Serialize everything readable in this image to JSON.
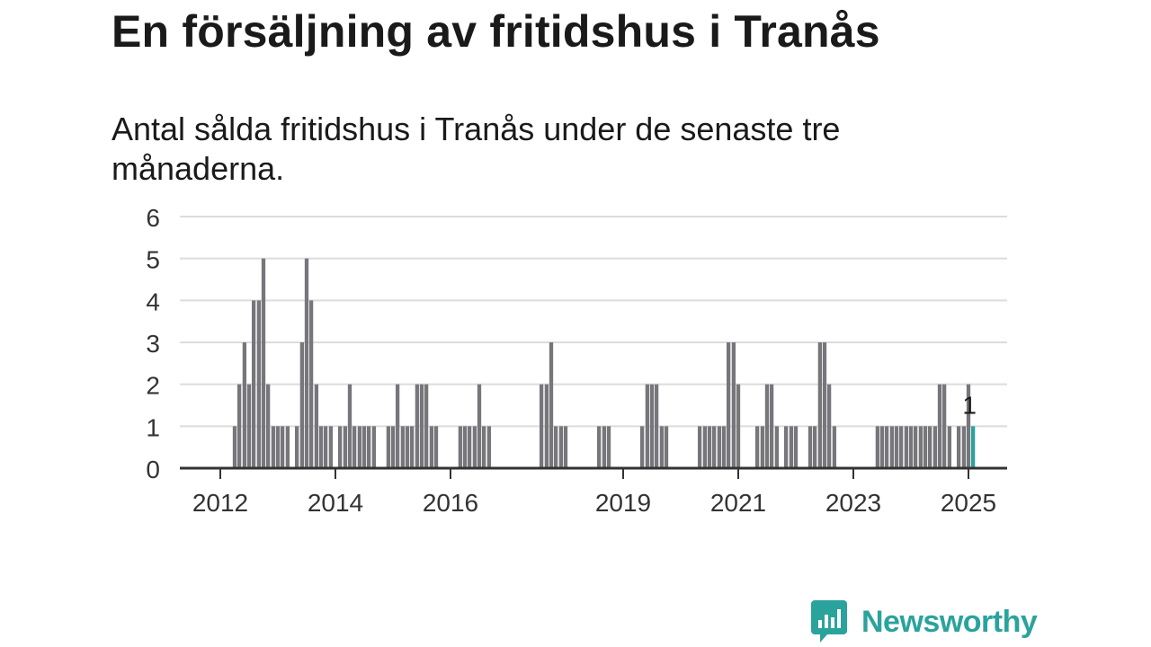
{
  "title": "En försäljning av fritidshus i Tranås",
  "subtitle": "Antal sålda fritidshus i Tranås under de senaste tre månaderna.",
  "brand": {
    "name": "Newsworthy",
    "color": "#2aa39c"
  },
  "chart_data": {
    "type": "bar",
    "title": "",
    "xlabel": "",
    "ylabel": "",
    "ylim": [
      0,
      6
    ],
    "yticks": [
      0,
      1,
      2,
      3,
      4,
      5,
      6
    ],
    "grid": true,
    "x_tick_labels": [
      "2012",
      "2014",
      "2016",
      "2019",
      "2021",
      "2023",
      "2025"
    ],
    "x_tick_years": [
      2012.0,
      2014.0,
      2016.0,
      2019.0,
      2021.0,
      2023.0,
      2025.0
    ],
    "bar_color": "#76767b",
    "highlight_color": "#2aa39c",
    "highlight_label": "1",
    "series": [
      {
        "values": [
          [
            2012.25,
            1
          ],
          [
            2012.33,
            2
          ],
          [
            2012.42,
            3
          ],
          [
            2012.5,
            2
          ],
          [
            2012.58,
            4
          ],
          [
            2012.67,
            4
          ],
          [
            2012.75,
            5
          ],
          [
            2012.83,
            2
          ],
          [
            2012.92,
            1
          ],
          [
            2013.0,
            1
          ],
          [
            2013.08,
            1
          ],
          [
            2013.17,
            1
          ],
          [
            2013.33,
            1
          ],
          [
            2013.42,
            3
          ],
          [
            2013.5,
            5
          ],
          [
            2013.58,
            4
          ],
          [
            2013.67,
            2
          ],
          [
            2013.75,
            1
          ],
          [
            2013.83,
            1
          ],
          [
            2013.92,
            1
          ],
          [
            2014.08,
            1
          ],
          [
            2014.17,
            1
          ],
          [
            2014.25,
            2
          ],
          [
            2014.33,
            1
          ],
          [
            2014.42,
            1
          ],
          [
            2014.5,
            1
          ],
          [
            2014.58,
            1
          ],
          [
            2014.67,
            1
          ],
          [
            2014.92,
            1
          ],
          [
            2015.0,
            1
          ],
          [
            2015.08,
            2
          ],
          [
            2015.17,
            1
          ],
          [
            2015.25,
            1
          ],
          [
            2015.33,
            1
          ],
          [
            2015.42,
            2
          ],
          [
            2015.5,
            2
          ],
          [
            2015.58,
            2
          ],
          [
            2015.67,
            1
          ],
          [
            2015.75,
            1
          ],
          [
            2016.17,
            1
          ],
          [
            2016.25,
            1
          ],
          [
            2016.33,
            1
          ],
          [
            2016.42,
            1
          ],
          [
            2016.5,
            2
          ],
          [
            2016.58,
            1
          ],
          [
            2016.67,
            1
          ],
          [
            2017.58,
            2
          ],
          [
            2017.67,
            2
          ],
          [
            2017.75,
            3
          ],
          [
            2017.83,
            1
          ],
          [
            2017.92,
            1
          ],
          [
            2018.0,
            1
          ],
          [
            2018.58,
            1
          ],
          [
            2018.67,
            1
          ],
          [
            2018.75,
            1
          ],
          [
            2019.33,
            1
          ],
          [
            2019.42,
            2
          ],
          [
            2019.5,
            2
          ],
          [
            2019.58,
            2
          ],
          [
            2019.67,
            1
          ],
          [
            2019.75,
            1
          ],
          [
            2020.33,
            1
          ],
          [
            2020.42,
            1
          ],
          [
            2020.5,
            1
          ],
          [
            2020.58,
            1
          ],
          [
            2020.67,
            1
          ],
          [
            2020.75,
            1
          ],
          [
            2020.83,
            3
          ],
          [
            2020.92,
            3
          ],
          [
            2021.0,
            2
          ],
          [
            2021.33,
            1
          ],
          [
            2021.42,
            1
          ],
          [
            2021.5,
            2
          ],
          [
            2021.58,
            2
          ],
          [
            2021.67,
            1
          ],
          [
            2021.83,
            1
          ],
          [
            2021.92,
            1
          ],
          [
            2022.0,
            1
          ],
          [
            2022.25,
            1
          ],
          [
            2022.33,
            1
          ],
          [
            2022.42,
            3
          ],
          [
            2022.5,
            3
          ],
          [
            2022.58,
            2
          ],
          [
            2022.67,
            1
          ],
          [
            2023.42,
            1
          ],
          [
            2023.5,
            1
          ],
          [
            2023.58,
            1
          ],
          [
            2023.67,
            1
          ],
          [
            2023.75,
            1
          ],
          [
            2023.83,
            1
          ],
          [
            2023.92,
            1
          ],
          [
            2024.0,
            1
          ],
          [
            2024.08,
            1
          ],
          [
            2024.17,
            1
          ],
          [
            2024.25,
            1
          ],
          [
            2024.33,
            1
          ],
          [
            2024.42,
            1
          ],
          [
            2024.5,
            2
          ],
          [
            2024.58,
            2
          ],
          [
            2024.67,
            1
          ],
          [
            2024.83,
            1
          ],
          [
            2024.92,
            1
          ],
          [
            2025.0,
            2
          ]
        ]
      }
    ],
    "highlight": [
      2025.08,
      1
    ]
  }
}
